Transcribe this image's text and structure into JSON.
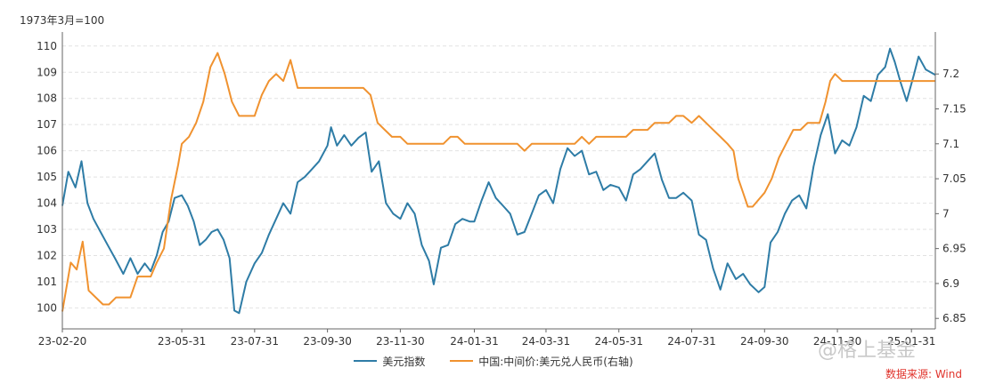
{
  "chart_data": {
    "type": "line",
    "unit_label": "1973年3月=100",
    "x_ticks": [
      "23-02-20",
      "23-05-31",
      "23-07-31",
      "23-09-30",
      "23-11-30",
      "24-01-31",
      "24-03-31",
      "24-05-31",
      "24-07-31",
      "24-09-30",
      "24-11-30",
      "25-01-31"
    ],
    "x_start": "2023-02-20",
    "x_end": "2025-02-20",
    "ylim_left": [
      99.2,
      110.4
    ],
    "yticks_left": [
      100,
      101,
      102,
      103,
      104,
      105,
      106,
      107,
      108,
      109,
      110
    ],
    "ylim_right": [
      6.835,
      7.255
    ],
    "yticks_right": [
      "6.85",
      "6.9",
      "6.95",
      "7",
      "7.05",
      "7.1",
      "7.15",
      "7.2"
    ],
    "grid": "horizontal dashed",
    "legend_position": "bottom",
    "series": [
      {
        "name": "美元指数",
        "axis": "left",
        "color": "#2e7ca6",
        "points": [
          [
            "2023-02-20",
            103.9
          ],
          [
            "2023-02-25",
            105.2
          ],
          [
            "2023-03-03",
            104.6
          ],
          [
            "2023-03-08",
            105.6
          ],
          [
            "2023-03-13",
            104.0
          ],
          [
            "2023-03-18",
            103.4
          ],
          [
            "2023-03-24",
            102.9
          ],
          [
            "2023-03-30",
            102.4
          ],
          [
            "2023-04-05",
            101.9
          ],
          [
            "2023-04-12",
            101.3
          ],
          [
            "2023-04-18",
            101.9
          ],
          [
            "2023-04-24",
            101.3
          ],
          [
            "2023-04-30",
            101.7
          ],
          [
            "2023-05-05",
            101.4
          ],
          [
            "2023-05-10",
            102.0
          ],
          [
            "2023-05-15",
            102.9
          ],
          [
            "2023-05-20",
            103.3
          ],
          [
            "2023-05-25",
            104.2
          ],
          [
            "2023-05-31",
            104.3
          ],
          [
            "2023-06-05",
            103.9
          ],
          [
            "2023-06-10",
            103.3
          ],
          [
            "2023-06-15",
            102.4
          ],
          [
            "2023-06-20",
            102.6
          ],
          [
            "2023-06-25",
            102.9
          ],
          [
            "2023-06-30",
            103.0
          ],
          [
            "2023-07-05",
            102.6
          ],
          [
            "2023-07-10",
            101.9
          ],
          [
            "2023-07-14",
            99.9
          ],
          [
            "2023-07-18",
            99.8
          ],
          [
            "2023-07-24",
            101.0
          ],
          [
            "2023-07-31",
            101.7
          ],
          [
            "2023-08-06",
            102.1
          ],
          [
            "2023-08-12",
            102.8
          ],
          [
            "2023-08-18",
            103.4
          ],
          [
            "2023-08-24",
            104.0
          ],
          [
            "2023-08-30",
            103.6
          ],
          [
            "2023-09-05",
            104.8
          ],
          [
            "2023-09-11",
            105.0
          ],
          [
            "2023-09-17",
            105.3
          ],
          [
            "2023-09-23",
            105.6
          ],
          [
            "2023-09-30",
            106.2
          ],
          [
            "2023-10-03",
            106.9
          ],
          [
            "2023-10-08",
            106.2
          ],
          [
            "2023-10-14",
            106.6
          ],
          [
            "2023-10-20",
            106.2
          ],
          [
            "2023-10-26",
            106.5
          ],
          [
            "2023-11-01",
            106.7
          ],
          [
            "2023-11-06",
            105.2
          ],
          [
            "2023-11-12",
            105.6
          ],
          [
            "2023-11-18",
            104.0
          ],
          [
            "2023-11-24",
            103.6
          ],
          [
            "2023-11-30",
            103.4
          ],
          [
            "2023-12-06",
            104.0
          ],
          [
            "2023-12-12",
            103.6
          ],
          [
            "2023-12-18",
            102.4
          ],
          [
            "2023-12-24",
            101.8
          ],
          [
            "2023-12-28",
            100.9
          ],
          [
            "2024-01-03",
            102.3
          ],
          [
            "2024-01-09",
            102.4
          ],
          [
            "2024-01-15",
            103.2
          ],
          [
            "2024-01-21",
            103.4
          ],
          [
            "2024-01-27",
            103.3
          ],
          [
            "2024-01-31",
            103.3
          ],
          [
            "2024-02-06",
            104.1
          ],
          [
            "2024-02-12",
            104.8
          ],
          [
            "2024-02-18",
            104.2
          ],
          [
            "2024-02-24",
            103.9
          ],
          [
            "2024-03-01",
            103.6
          ],
          [
            "2024-03-07",
            102.8
          ],
          [
            "2024-03-13",
            102.9
          ],
          [
            "2024-03-19",
            103.6
          ],
          [
            "2024-03-25",
            104.3
          ],
          [
            "2024-03-31",
            104.5
          ],
          [
            "2024-04-06",
            104.0
          ],
          [
            "2024-04-12",
            105.3
          ],
          [
            "2024-04-18",
            106.1
          ],
          [
            "2024-04-24",
            105.8
          ],
          [
            "2024-04-30",
            106.0
          ],
          [
            "2024-05-06",
            105.1
          ],
          [
            "2024-05-12",
            105.2
          ],
          [
            "2024-05-18",
            104.5
          ],
          [
            "2024-05-24",
            104.7
          ],
          [
            "2024-05-31",
            104.6
          ],
          [
            "2024-06-06",
            104.1
          ],
          [
            "2024-06-12",
            105.1
          ],
          [
            "2024-06-18",
            105.3
          ],
          [
            "2024-06-24",
            105.6
          ],
          [
            "2024-06-30",
            105.9
          ],
          [
            "2024-07-06",
            104.9
          ],
          [
            "2024-07-12",
            104.2
          ],
          [
            "2024-07-18",
            104.2
          ],
          [
            "2024-07-24",
            104.4
          ],
          [
            "2024-07-31",
            104.1
          ],
          [
            "2024-08-06",
            102.8
          ],
          [
            "2024-08-12",
            102.6
          ],
          [
            "2024-08-18",
            101.5
          ],
          [
            "2024-08-24",
            100.7
          ],
          [
            "2024-08-30",
            101.7
          ],
          [
            "2024-09-06",
            101.1
          ],
          [
            "2024-09-12",
            101.3
          ],
          [
            "2024-09-18",
            100.9
          ],
          [
            "2024-09-25",
            100.6
          ],
          [
            "2024-09-30",
            100.8
          ],
          [
            "2024-10-05",
            102.5
          ],
          [
            "2024-10-11",
            102.9
          ],
          [
            "2024-10-17",
            103.6
          ],
          [
            "2024-10-23",
            104.1
          ],
          [
            "2024-10-29",
            104.3
          ],
          [
            "2024-11-04",
            103.8
          ],
          [
            "2024-11-10",
            105.4
          ],
          [
            "2024-11-16",
            106.6
          ],
          [
            "2024-11-22",
            107.4
          ],
          [
            "2024-11-28",
            105.9
          ],
          [
            "2024-12-04",
            106.4
          ],
          [
            "2024-12-10",
            106.2
          ],
          [
            "2024-12-16",
            106.9
          ],
          [
            "2024-12-22",
            108.1
          ],
          [
            "2024-12-28",
            107.9
          ],
          [
            "2025-01-03",
            108.9
          ],
          [
            "2025-01-09",
            109.2
          ],
          [
            "2025-01-13",
            109.9
          ],
          [
            "2025-01-17",
            109.4
          ],
          [
            "2025-01-22",
            108.6
          ],
          [
            "2025-01-27",
            107.9
          ],
          [
            "2025-02-02",
            108.9
          ],
          [
            "2025-02-06",
            109.6
          ],
          [
            "2025-02-12",
            109.1
          ],
          [
            "2025-02-20",
            108.9
          ]
        ]
      },
      {
        "name": "中国:中间价:美元兑人民币(右轴)",
        "axis": "right",
        "color": "#f0922f",
        "points": [
          [
            "2023-02-20",
            6.86
          ],
          [
            "2023-02-27",
            6.93
          ],
          [
            "2023-03-04",
            6.92
          ],
          [
            "2023-03-09",
            6.96
          ],
          [
            "2023-03-14",
            6.89
          ],
          [
            "2023-03-20",
            6.88
          ],
          [
            "2023-03-26",
            6.87
          ],
          [
            "2023-03-31",
            6.87
          ],
          [
            "2023-04-06",
            6.88
          ],
          [
            "2023-04-12",
            6.88
          ],
          [
            "2023-04-18",
            6.88
          ],
          [
            "2023-04-24",
            6.91
          ],
          [
            "2023-04-30",
            6.91
          ],
          [
            "2023-05-05",
            6.91
          ],
          [
            "2023-05-10",
            6.93
          ],
          [
            "2023-05-16",
            6.95
          ],
          [
            "2023-05-22",
            7.02
          ],
          [
            "2023-05-28",
            7.07
          ],
          [
            "2023-05-31",
            7.1
          ],
          [
            "2023-06-06",
            7.11
          ],
          [
            "2023-06-12",
            7.13
          ],
          [
            "2023-06-18",
            7.16
          ],
          [
            "2023-06-24",
            7.21
          ],
          [
            "2023-06-30",
            7.23
          ],
          [
            "2023-07-06",
            7.2
          ],
          [
            "2023-07-12",
            7.16
          ],
          [
            "2023-07-18",
            7.14
          ],
          [
            "2023-07-24",
            7.14
          ],
          [
            "2023-07-31",
            7.14
          ],
          [
            "2023-08-06",
            7.17
          ],
          [
            "2023-08-12",
            7.19
          ],
          [
            "2023-08-18",
            7.2
          ],
          [
            "2023-08-24",
            7.19
          ],
          [
            "2023-08-30",
            7.22
          ],
          [
            "2023-09-05",
            7.18
          ],
          [
            "2023-09-11",
            7.18
          ],
          [
            "2023-09-17",
            7.18
          ],
          [
            "2023-09-23",
            7.18
          ],
          [
            "2023-09-30",
            7.18
          ],
          [
            "2023-10-06",
            7.18
          ],
          [
            "2023-10-12",
            7.18
          ],
          [
            "2023-10-18",
            7.18
          ],
          [
            "2023-10-24",
            7.18
          ],
          [
            "2023-10-30",
            7.18
          ],
          [
            "2023-11-05",
            7.17
          ],
          [
            "2023-11-11",
            7.13
          ],
          [
            "2023-11-17",
            7.12
          ],
          [
            "2023-11-23",
            7.11
          ],
          [
            "2023-11-30",
            7.11
          ],
          [
            "2023-12-06",
            7.1
          ],
          [
            "2023-12-12",
            7.1
          ],
          [
            "2023-12-18",
            7.1
          ],
          [
            "2023-12-24",
            7.1
          ],
          [
            "2023-12-30",
            7.1
          ],
          [
            "2024-01-05",
            7.1
          ],
          [
            "2024-01-11",
            7.11
          ],
          [
            "2024-01-17",
            7.11
          ],
          [
            "2024-01-23",
            7.1
          ],
          [
            "2024-01-31",
            7.1
          ],
          [
            "2024-02-06",
            7.1
          ],
          [
            "2024-02-12",
            7.1
          ],
          [
            "2024-02-18",
            7.1
          ],
          [
            "2024-02-24",
            7.1
          ],
          [
            "2024-03-01",
            7.1
          ],
          [
            "2024-03-07",
            7.1
          ],
          [
            "2024-03-13",
            7.09
          ],
          [
            "2024-03-19",
            7.1
          ],
          [
            "2024-03-25",
            7.1
          ],
          [
            "2024-03-31",
            7.1
          ],
          [
            "2024-04-06",
            7.1
          ],
          [
            "2024-04-12",
            7.1
          ],
          [
            "2024-04-18",
            7.1
          ],
          [
            "2024-04-24",
            7.1
          ],
          [
            "2024-04-30",
            7.11
          ],
          [
            "2024-05-06",
            7.1
          ],
          [
            "2024-05-12",
            7.11
          ],
          [
            "2024-05-18",
            7.11
          ],
          [
            "2024-05-24",
            7.11
          ],
          [
            "2024-05-31",
            7.11
          ],
          [
            "2024-06-06",
            7.11
          ],
          [
            "2024-06-12",
            7.12
          ],
          [
            "2024-06-18",
            7.12
          ],
          [
            "2024-06-24",
            7.12
          ],
          [
            "2024-06-30",
            7.13
          ],
          [
            "2024-07-06",
            7.13
          ],
          [
            "2024-07-12",
            7.13
          ],
          [
            "2024-07-18",
            7.14
          ],
          [
            "2024-07-24",
            7.14
          ],
          [
            "2024-07-31",
            7.13
          ],
          [
            "2024-08-06",
            7.14
          ],
          [
            "2024-08-12",
            7.13
          ],
          [
            "2024-08-18",
            7.12
          ],
          [
            "2024-08-24",
            7.11
          ],
          [
            "2024-08-30",
            7.1
          ],
          [
            "2024-09-04",
            7.09
          ],
          [
            "2024-09-08",
            7.05
          ],
          [
            "2024-09-12",
            7.03
          ],
          [
            "2024-09-16",
            7.01
          ],
          [
            "2024-09-20",
            7.01
          ],
          [
            "2024-09-25",
            7.02
          ],
          [
            "2024-09-30",
            7.03
          ],
          [
            "2024-10-06",
            7.05
          ],
          [
            "2024-10-12",
            7.08
          ],
          [
            "2024-10-18",
            7.1
          ],
          [
            "2024-10-24",
            7.12
          ],
          [
            "2024-10-30",
            7.12
          ],
          [
            "2024-11-05",
            7.13
          ],
          [
            "2024-11-10",
            7.13
          ],
          [
            "2024-11-15",
            7.13
          ],
          [
            "2024-11-20",
            7.16
          ],
          [
            "2024-11-24",
            7.19
          ],
          [
            "2024-11-28",
            7.2
          ],
          [
            "2024-12-04",
            7.19
          ],
          [
            "2024-12-10",
            7.19
          ],
          [
            "2024-12-16",
            7.19
          ],
          [
            "2024-12-22",
            7.19
          ],
          [
            "2024-12-28",
            7.19
          ],
          [
            "2025-01-03",
            7.19
          ],
          [
            "2025-01-09",
            7.19
          ],
          [
            "2025-01-15",
            7.19
          ],
          [
            "2025-01-21",
            7.19
          ],
          [
            "2025-01-27",
            7.19
          ],
          [
            "2025-02-02",
            7.19
          ],
          [
            "2025-02-08",
            7.19
          ],
          [
            "2025-02-14",
            7.19
          ],
          [
            "2025-02-20",
            7.19
          ]
        ]
      }
    ]
  },
  "watermark": "@格上基金",
  "source": {
    "text": "数据来源: Wind",
    "color": "#e0332b"
  }
}
